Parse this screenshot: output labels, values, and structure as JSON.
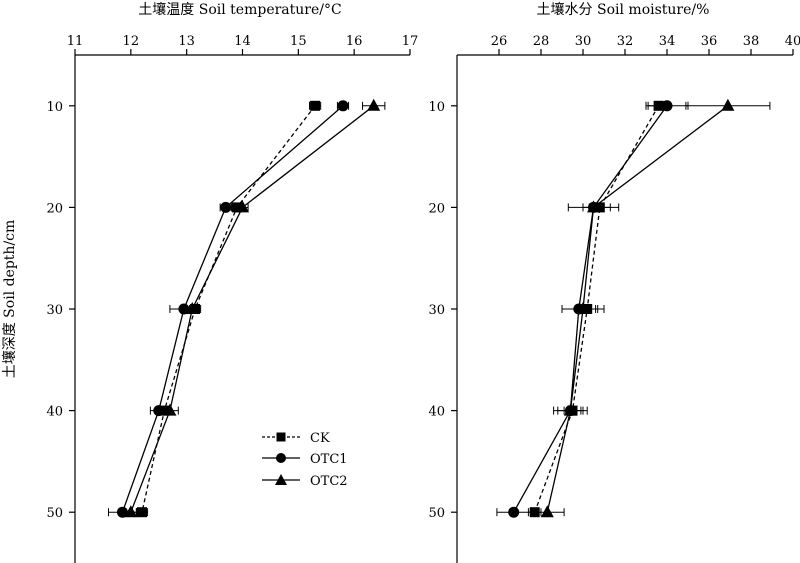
{
  "chart_data": [
    {
      "type": "line",
      "title": "土壤温度 Soil temperature/°C",
      "xlabel": "土壤温度 Soil temperature/°C",
      "ylabel": "土壤深度 Soil depth/cm",
      "xlim": [
        11,
        17
      ],
      "ylim": [
        55,
        5
      ],
      "x_ticks": [
        "11",
        "12",
        "13",
        "14",
        "15",
        "16",
        "17"
      ],
      "y_ticks": [
        "10",
        "20",
        "30",
        "40",
        "50"
      ],
      "depths": [
        10,
        20,
        30,
        40,
        50
      ],
      "series": [
        {
          "name": "CK",
          "values": [
            15.3,
            13.9,
            13.15,
            12.6,
            12.2
          ],
          "errors": [
            0.1,
            0.1,
            0.1,
            0.1,
            0.1
          ]
        },
        {
          "name": "OTC1",
          "values": [
            15.8,
            13.7,
            12.95,
            12.5,
            11.85
          ],
          "errors": [
            0.1,
            0.1,
            0.25,
            0.15,
            0.25
          ]
        },
        {
          "name": "OTC2",
          "values": [
            16.35,
            14.0,
            13.1,
            12.7,
            12.0
          ],
          "errors": [
            0.2,
            0.1,
            0.1,
            0.15,
            0.1
          ]
        }
      ]
    },
    {
      "type": "line",
      "title": "土壤水分 Soil moisture/%",
      "xlabel": "土壤水分 Soil moisture/%",
      "ylabel": "",
      "xlim": [
        24,
        40
      ],
      "ylim": [
        55,
        5
      ],
      "x_ticks": [
        "26",
        "28",
        "30",
        "32",
        "34",
        "36",
        "38",
        "40"
      ],
      "y_ticks": [
        "10",
        "20",
        "30",
        "40",
        "50"
      ],
      "depths": [
        10,
        20,
        30,
        40,
        50
      ],
      "series": [
        {
          "name": "CK",
          "values": [
            33.6,
            30.8,
            30.2,
            29.5,
            27.7
          ],
          "errors": [
            0.5,
            0.5,
            0.5,
            0.4,
            0.3
          ]
        },
        {
          "name": "OTC1",
          "values": [
            34.0,
            30.5,
            29.8,
            29.4,
            26.7
          ],
          "errors": [
            1.0,
            1.2,
            0.8,
            0.8,
            0.8
          ]
        },
        {
          "name": "OTC2",
          "values": [
            36.9,
            30.5,
            30.0,
            29.4,
            28.3
          ],
          "errors": [
            2.0,
            0.5,
            1.0,
            0.6,
            0.8
          ]
        }
      ]
    }
  ],
  "legend": {
    "placement": "bottom-right of left panel",
    "entries": [
      {
        "label": "CK",
        "marker": "square",
        "line": "dashed"
      },
      {
        "label": "OTC1",
        "marker": "circle",
        "line": "solid"
      },
      {
        "label": "OTC2",
        "marker": "triangle",
        "line": "solid"
      }
    ]
  }
}
